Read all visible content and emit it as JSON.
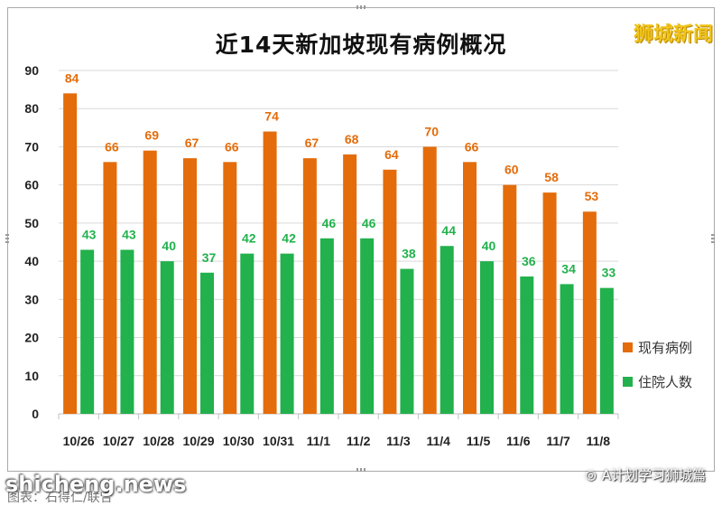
{
  "brand_label": "狮城新闻",
  "watermark_text": "shicheng.news",
  "caption_text": "图表：石得仁/联合",
  "account_label": "A计划学习狮城篇",
  "account_icon": "wechat-icon",
  "colors": {
    "series1": "#E46C0A",
    "series2": "#22B14C",
    "label1": "#E46C0A",
    "label2": "#22B14C",
    "grid": "#D9D9D9"
  },
  "chart_data": {
    "type": "bar",
    "title": "近14天新加坡现有病例概况",
    "categories": [
      "10/26",
      "10/27",
      "10/28",
      "10/29",
      "10/30",
      "10/31",
      "11/1",
      "11/2",
      "11/3",
      "11/4",
      "11/5",
      "11/6",
      "11/7",
      "11/8"
    ],
    "series": [
      {
        "name": "现有病例",
        "values": [
          84,
          66,
          69,
          67,
          66,
          74,
          67,
          68,
          64,
          70,
          66,
          60,
          58,
          53
        ]
      },
      {
        "name": "住院人数",
        "values": [
          43,
          43,
          40,
          37,
          42,
          42,
          46,
          46,
          38,
          44,
          40,
          36,
          34,
          33
        ]
      }
    ],
    "ylim": [
      0,
      90
    ],
    "yticks": [
      0,
      10,
      20,
      30,
      40,
      50,
      60,
      70,
      80,
      90
    ],
    "xlabel": "",
    "ylabel": "",
    "grid": true,
    "legend_position": "right"
  }
}
